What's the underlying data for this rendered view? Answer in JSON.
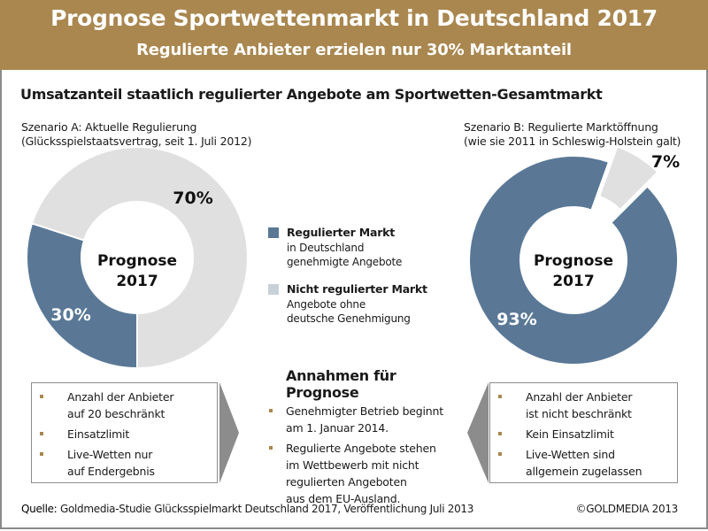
{
  "header": {
    "title": "Prognose Sportwettenmarkt in Deutschland 2017",
    "subtitle": "Regulierte Anbieter erzielen nur 30% Marktanteil"
  },
  "colors": {
    "header_bg": "#a9874f",
    "regulated": "#5a7896",
    "unregulated": "#e0e0e0",
    "bullet": "#a9874f",
    "arrow": "#8c8c8c"
  },
  "chart_data": {
    "type": "pie",
    "title": "Umsatzanteil staatlich regulierter Angebote am Sportwetten-Gesamtmarkt",
    "legend_position": "center",
    "legend": [
      {
        "name": "Regulierter Markt",
        "description": [
          "in Deutschland",
          "genehmigte Angebote"
        ],
        "color": "#5a7896"
      },
      {
        "name": "Nicht regulierter Markt",
        "description": [
          "Angebote ohne",
          "deutsche Genehmigung"
        ],
        "color": "#c9d1d8"
      }
    ],
    "charts": [
      {
        "id": "scenario-a",
        "title": "Szenario A: Aktuelle Regulierung",
        "subtitle": "(Glücksspielstaatsvertrag, seit 1. Juli 2012)",
        "center_label": [
          "Prognose",
          "2017"
        ],
        "slices": [
          {
            "name": "Regulierter Markt",
            "value": 30,
            "label": "30%"
          },
          {
            "name": "Nicht regulierter Markt",
            "value": 70,
            "label": "70%"
          }
        ]
      },
      {
        "id": "scenario-b",
        "title": "Szenario B: Regulierte Marktöffnung",
        "subtitle": "(wie sie 2011 in Schleswig-Holstein galt)",
        "center_label": [
          "Prognose",
          "2017"
        ],
        "slices": [
          {
            "name": "Regulierter Markt",
            "value": 93,
            "label": "93%"
          },
          {
            "name": "Nicht regulierter Markt",
            "value": 7,
            "label": "7%",
            "exploded": true
          }
        ]
      }
    ]
  },
  "scenario_a_notes": [
    "Anzahl der Anbieter auf 20 beschränkt",
    "Einsatzlimit",
    "Live-Wetten nur auf Endergebnis"
  ],
  "scenario_a_notes_lines": [
    [
      "Anzahl der Anbieter",
      "auf 20 beschränkt"
    ],
    [
      "Einsatzlimit"
    ],
    [
      "Live-Wetten nur",
      "auf Endergebnis"
    ]
  ],
  "assumptions": {
    "heading": "Annahmen für Prognose",
    "items": [
      [
        "Genehmigter Betrieb beginnt",
        "am 1. Januar 2014."
      ],
      [
        "Regulierte Angebote stehen",
        "im Wettbewerb mit nicht",
        "regulierten Angeboten",
        "aus dem EU-Ausland."
      ]
    ]
  },
  "scenario_b_notes_lines": [
    [
      "Anzahl der Anbieter",
      "ist nicht beschränkt"
    ],
    [
      "Kein Einsatzlimit"
    ],
    [
      "Live-Wetten sind",
      "allgemein zugelassen"
    ]
  ],
  "footer": {
    "source_label": "Quelle:",
    "source_text": " Goldmedia-Studie Glücksspielmarkt Deutschland 2017, Veröffentlichung Juli 2013",
    "copyright": "©GOLDMEDIA 2013"
  }
}
